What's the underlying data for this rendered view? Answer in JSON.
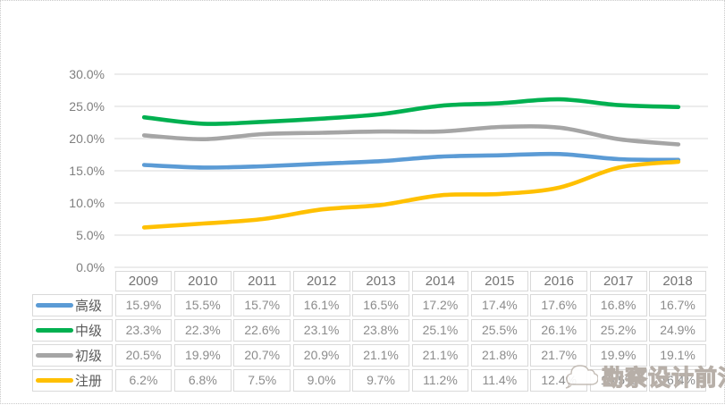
{
  "watermark": {
    "text": "勘察设计前沿",
    "logo": "cloud-logo-icon"
  },
  "colors": {
    "grid": "#d9d9d9",
    "axis_text": "#7f7f7f",
    "header_text": "#737373",
    "table_text": "#8c8c8c",
    "legend_text": "#595959",
    "cell_border": "#d9d9d9",
    "frame_border": "#c9c9c9"
  },
  "chart_data": {
    "type": "line",
    "categories": [
      "2009",
      "2010",
      "2011",
      "2012",
      "2013",
      "2014",
      "2015",
      "2016",
      "2017",
      "2018"
    ],
    "series": [
      {
        "name": "高级",
        "color": "#5B9BD5",
        "values": [
          15.9,
          15.5,
          15.7,
          16.1,
          16.5,
          17.2,
          17.4,
          17.6,
          16.8,
          16.7
        ]
      },
      {
        "name": "中级",
        "color": "#00B050",
        "values": [
          23.3,
          22.3,
          22.6,
          23.1,
          23.8,
          25.1,
          25.5,
          26.1,
          25.2,
          24.9
        ]
      },
      {
        "name": "初级",
        "color": "#A5A5A5",
        "values": [
          20.5,
          19.9,
          20.7,
          20.9,
          21.1,
          21.1,
          21.8,
          21.7,
          19.9,
          19.1
        ]
      },
      {
        "name": "注册",
        "color": "#FFC000",
        "values": [
          6.2,
          6.8,
          7.5,
          9.0,
          9.7,
          11.2,
          11.4,
          12.4,
          15.5,
          16.4
        ]
      }
    ],
    "title": "",
    "xlabel": "",
    "ylabel": "",
    "ylim": [
      0,
      30
    ],
    "ytick_step": 5,
    "ytick_labels": [
      "0.0%",
      "5.0%",
      "10.0%",
      "15.0%",
      "20.0%",
      "25.0%",
      "30.0%"
    ],
    "grid": true,
    "legend_position": "table-left",
    "value_suffix": "%"
  }
}
